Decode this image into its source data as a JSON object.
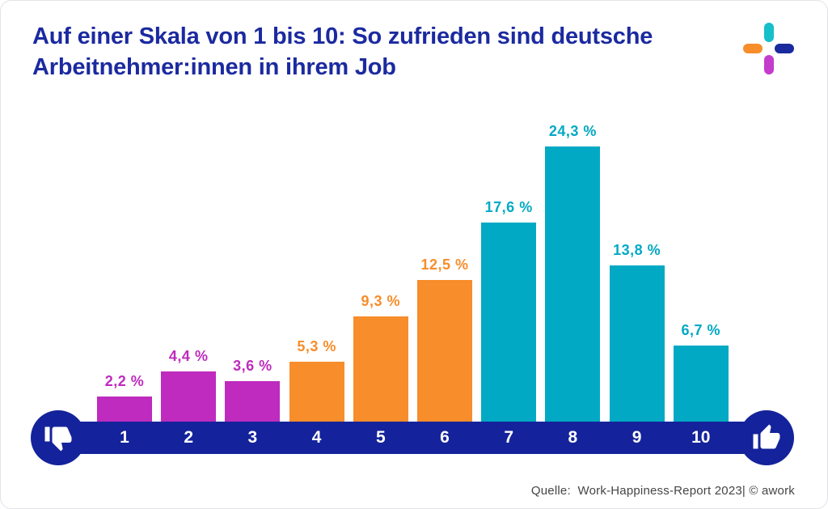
{
  "header": {
    "title": "Auf einer Skala von 1 bis 10: So zufrieden sind deutsche Arbeitnehmer:innen in ihrem Job"
  },
  "logo": {
    "name": "awork",
    "pill_colors": {
      "top": "#16BFCA",
      "left": "#F78D2B",
      "right": "#1A2A9E",
      "bottom": "#C43CCB"
    }
  },
  "chart_data": {
    "type": "bar",
    "title": "Auf einer Skala von 1 bis 10: So zufrieden sind deutsche Arbeitnehmer:innen in ihrem Job",
    "categories": [
      "1",
      "2",
      "3",
      "4",
      "5",
      "6",
      "7",
      "8",
      "9",
      "10"
    ],
    "values": [
      2.2,
      4.4,
      3.6,
      5.3,
      9.3,
      12.5,
      17.6,
      24.3,
      13.8,
      6.7
    ],
    "value_labels": [
      "2,2 %",
      "4,4 %",
      "3,6 %",
      "5,3 %",
      "9,3 %",
      "12,5 %",
      "17,6 %",
      "24,3 %",
      "13,8 %",
      "6,7 %"
    ],
    "bar_colors": [
      "#BE2BBE",
      "#BE2BBE",
      "#BE2BBE",
      "#F78D2B",
      "#F78D2B",
      "#F78D2B",
      "#01A9C4",
      "#01A9C4",
      "#01A9C4",
      "#01A9C4"
    ],
    "xlabel": "",
    "ylabel": "",
    "ylim": [
      0,
      26
    ],
    "grid": false,
    "legend": false,
    "axis_endpoints": {
      "low": "thumbs-down",
      "high": "thumbs-up"
    }
  },
  "footer": {
    "source_text": "Quelle:  Work-Happiness-Report 2023| © awork"
  },
  "colors": {
    "title_navy": "#1B2AA0",
    "axis_navy": "#14239B",
    "magenta": "#BE2BBE",
    "orange": "#F78D2B",
    "teal": "#01A9C4",
    "footer_gray": "#454545",
    "card_border": "#E3E3E8",
    "background": "#FFFFFF"
  }
}
